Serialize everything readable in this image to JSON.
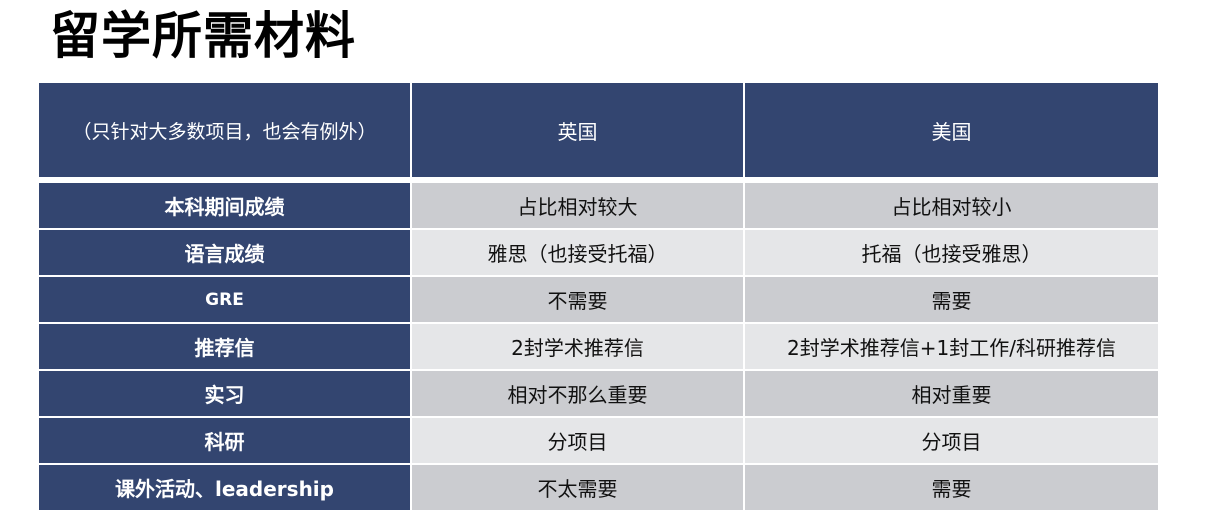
{
  "title": "留学所需材料",
  "table": {
    "header": [
      "（只针对大多数项目，也会有例外）",
      "英国",
      "美国"
    ],
    "rows": [
      {
        "label": "本科期间成绩",
        "uk": "占比相对较大",
        "us": "占比相对较小"
      },
      {
        "label": "语言成绩",
        "uk": "雅思（也接受托福）",
        "us": "托福（也接受雅思）"
      },
      {
        "label": "GRE",
        "uk": "不需要",
        "us": "需要"
      },
      {
        "label": "推荐信",
        "uk": "2封学术推荐信",
        "us": "2封学术推荐信+1封工作/科研推荐信"
      },
      {
        "label": "实习",
        "uk": "相对不那么重要",
        "us": "相对重要"
      },
      {
        "label": "科研",
        "uk": "分项目",
        "us": "分项目"
      },
      {
        "label": "课外活动、leadership",
        "uk": "不太需要",
        "us": "需要"
      }
    ]
  },
  "colors": {
    "header": "#334570",
    "row_odd": "#cbccd0",
    "row_even": "#e5e6e8"
  }
}
